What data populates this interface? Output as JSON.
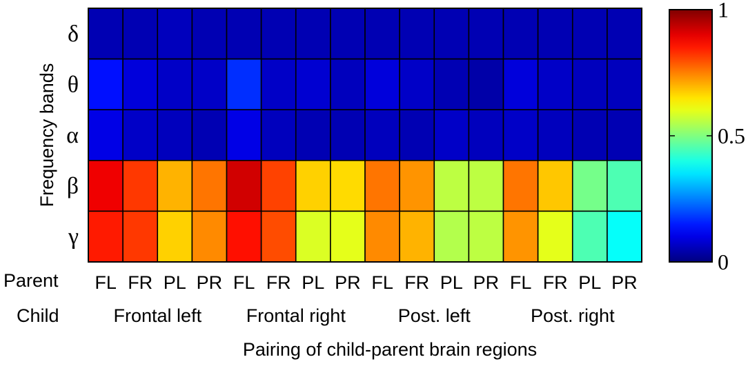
{
  "chart_data": {
    "type": "heatmap",
    "xlabel": "Pairing of child-parent brain regions",
    "ylabel": "Frequency bands",
    "row_labels": [
      "δ",
      "θ",
      "α",
      "β",
      "γ"
    ],
    "parent_label": "Parent",
    "child_label": "Child",
    "parent_ticks": [
      "FL",
      "FR",
      "PL",
      "PR",
      "FL",
      "FR",
      "PL",
      "PR",
      "FL",
      "FR",
      "PL",
      "PR",
      "FL",
      "FR",
      "PL",
      "PR"
    ],
    "child_groups": [
      "Frontal left",
      "Frontal right",
      "Post. left",
      "Post. right"
    ],
    "values": [
      [
        0.05,
        0.05,
        0.06,
        0.05,
        0.05,
        0.05,
        0.05,
        0.05,
        0.05,
        0.05,
        0.05,
        0.05,
        0.05,
        0.05,
        0.05,
        0.05
      ],
      [
        0.14,
        0.09,
        0.07,
        0.07,
        0.17,
        0.07,
        0.08,
        0.06,
        0.09,
        0.07,
        0.05,
        0.04,
        0.09,
        0.07,
        0.06,
        0.06
      ],
      [
        0.1,
        0.07,
        0.06,
        0.05,
        0.1,
        0.06,
        0.05,
        0.05,
        0.06,
        0.05,
        0.07,
        0.06,
        0.07,
        0.06,
        0.05,
        0.05
      ],
      [
        0.89,
        0.82,
        0.7,
        0.76,
        0.92,
        0.81,
        0.67,
        0.66,
        0.76,
        0.73,
        0.56,
        0.56,
        0.76,
        0.68,
        0.49,
        0.45
      ],
      [
        0.85,
        0.82,
        0.67,
        0.74,
        0.86,
        0.8,
        0.59,
        0.6,
        0.74,
        0.7,
        0.55,
        0.56,
        0.73,
        0.6,
        0.45,
        0.38
      ]
    ],
    "colorbar": {
      "min": 0,
      "max": 1,
      "ticks": [
        0,
        0.5,
        1
      ],
      "tick_labels": [
        "0",
        "0.5",
        "1"
      ],
      "colormap": "jet"
    }
  }
}
